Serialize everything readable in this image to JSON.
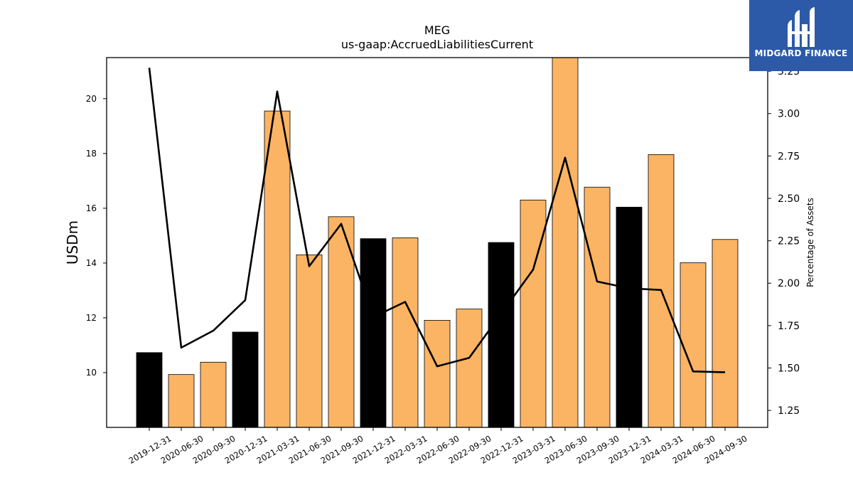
{
  "chart_data": {
    "type": "bar",
    "title": "MEG",
    "subtitle": "us-gaap:AccruedLiabilitiesCurrent",
    "ylabel": "USDm",
    "y2label": "Percentage of Assets",
    "categories": [
      "2019-12-31",
      "2020-06-30",
      "2020-09-30",
      "2020-12-31",
      "2021-03-31",
      "2021-06-30",
      "2021-09-30",
      "2021-12-31",
      "2022-03-31",
      "2022-06-30",
      "2022-09-30",
      "2022-12-31",
      "2023-03-31",
      "2023-06-30",
      "2023-09-30",
      "2023-12-31",
      "2024-03-31",
      "2024-06-30",
      "2024-09-30"
    ],
    "series": [
      {
        "kind": "bar",
        "values": [
          10.73,
          9.93,
          10.38,
          11.48,
          19.55,
          14.3,
          15.69,
          14.89,
          14.92,
          11.91,
          12.32,
          14.75,
          16.3,
          21.5,
          16.77,
          16.04,
          17.96,
          14.01,
          14.86
        ],
        "annual_flags": [
          true,
          false,
          false,
          true,
          false,
          false,
          false,
          true,
          false,
          false,
          false,
          true,
          false,
          false,
          false,
          true,
          false,
          false,
          false
        ],
        "colors": {
          "annual": "#000000",
          "quarterly": "#fbb463"
        }
      },
      {
        "kind": "line",
        "axis": "right",
        "color": "#000000",
        "values": [
          3.27,
          1.62,
          1.72,
          1.9,
          3.13,
          2.1,
          2.35,
          1.8,
          1.89,
          1.51,
          1.56,
          1.82,
          2.08,
          2.74,
          2.01,
          1.97,
          1.96,
          1.48,
          1.475
        ]
      }
    ],
    "ylim": [
      8.0,
      21.5
    ],
    "y2lim": [
      1.15,
      3.33
    ],
    "yticks": [
      "10",
      "12",
      "14",
      "16",
      "18",
      "20"
    ],
    "y2ticks": [
      "1.25",
      "1.50",
      "1.75",
      "2.00",
      "2.25",
      "2.50",
      "2.75",
      "3.00",
      "3.25"
    ],
    "grid": false,
    "legend": "none"
  },
  "logo": {
    "text": "MIDGARD FINANCE",
    "bg_color": "#2c5aa8"
  }
}
